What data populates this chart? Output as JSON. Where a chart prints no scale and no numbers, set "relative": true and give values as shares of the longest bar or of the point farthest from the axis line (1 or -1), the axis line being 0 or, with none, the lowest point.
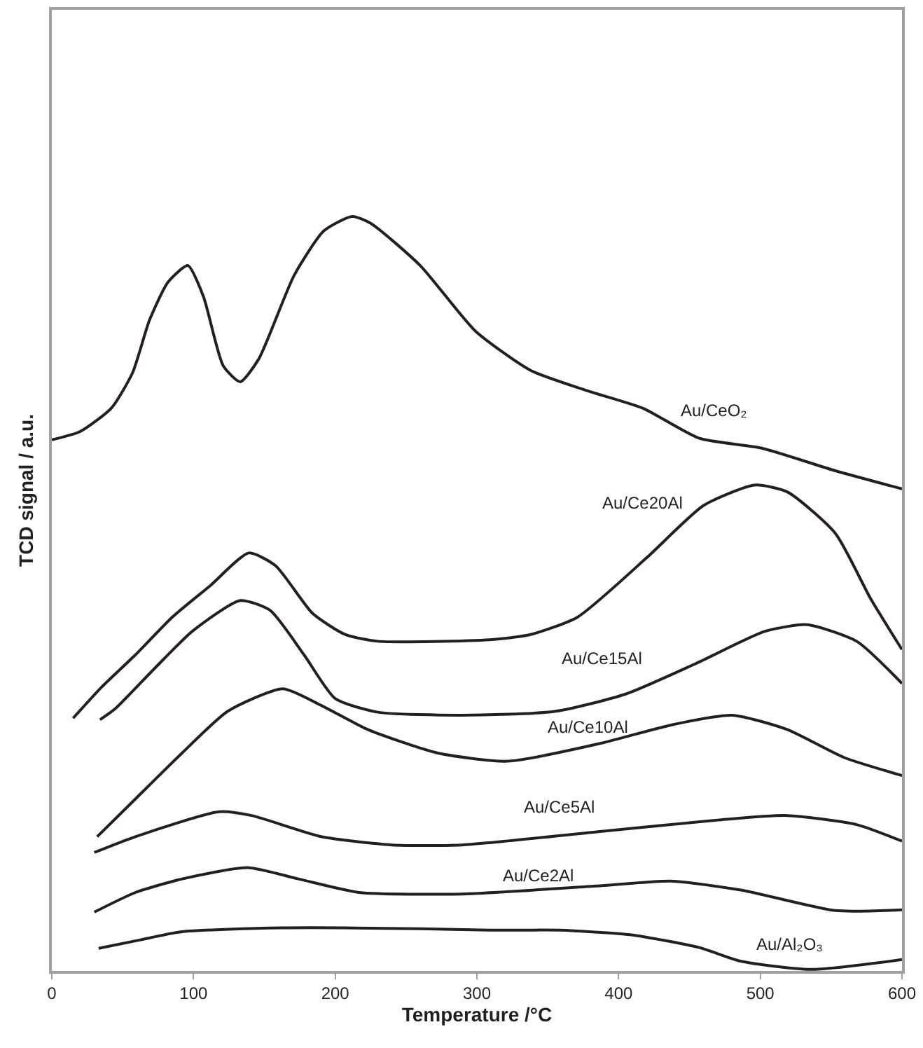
{
  "chart_data": {
    "type": "line",
    "relative": true,
    "xlabel": "Temperature /°C",
    "ylabel": "TCD signal / a.u.",
    "xlim": [
      0,
      600
    ],
    "xticks": [
      0,
      100,
      200,
      300,
      400,
      500,
      600
    ],
    "legend": false,
    "marker": "none",
    "line_style": "solid",
    "series": [
      {
        "name": "Au/CeO₂",
        "color": "#231f20",
        "x": [
          0,
          20,
          42,
          57,
          69,
          82,
          96,
          107,
          121,
          133,
          146,
          171,
          192,
          212,
          225,
          260,
          299,
          338,
          378,
          417,
          457,
          501,
          553,
          600
        ],
        "values": [
          0.704,
          0.715,
          0.746,
          0.793,
          0.863,
          0.913,
          0.935,
          0.894,
          0.802,
          0.781,
          0.811,
          0.922,
          0.981,
          1.0,
          0.991,
          0.935,
          0.848,
          0.796,
          0.769,
          0.746,
          0.706,
          0.693,
          0.663,
          0.639
        ]
      },
      {
        "name": "Au/Ce20Al",
        "color": "#231f20",
        "x": [
          15,
          35,
          59,
          85,
          112,
          139,
          158,
          184,
          207,
          230,
          309,
          338,
          371,
          420,
          460,
          496,
          519,
          553,
          578,
          600
        ],
        "values": [
          0.335,
          0.376,
          0.419,
          0.469,
          0.511,
          0.554,
          0.537,
          0.474,
          0.446,
          0.437,
          0.439,
          0.446,
          0.469,
          0.548,
          0.617,
          0.644,
          0.635,
          0.58,
          0.493,
          0.426
        ]
      },
      {
        "name": "Au/Ce15Al",
        "color": "#231f20",
        "x": [
          34,
          45,
          72,
          99,
          133,
          154,
          178,
          200,
          230,
          289,
          355,
          405,
          454,
          503,
          533,
          568,
          600
        ],
        "values": [
          0.333,
          0.348,
          0.4,
          0.45,
          0.491,
          0.478,
          0.419,
          0.361,
          0.343,
          0.339,
          0.344,
          0.367,
          0.407,
          0.45,
          0.459,
          0.437,
          0.381
        ]
      },
      {
        "name": "Au/Ce10Al",
        "color": "#231f20",
        "x": [
          32,
          59,
          92,
          124,
          163,
          190,
          223,
          272,
          322,
          388,
          437,
          480,
          519,
          559,
          600
        ],
        "values": [
          0.178,
          0.228,
          0.289,
          0.344,
          0.374,
          0.352,
          0.32,
          0.289,
          0.278,
          0.302,
          0.326,
          0.339,
          0.32,
          0.283,
          0.259
        ]
      },
      {
        "name": "Au/Ce5Al",
        "color": "#231f20",
        "x": [
          30,
          59,
          118,
          141,
          190,
          240,
          289,
          388,
          470,
          519,
          568,
          600
        ],
        "values": [
          0.157,
          0.178,
          0.211,
          0.206,
          0.178,
          0.167,
          0.167,
          0.185,
          0.2,
          0.206,
          0.194,
          0.172
        ]
      },
      {
        "name": "Au/Ce2Al",
        "color": "#231f20",
        "x": [
          30,
          59,
          92,
          138,
          174,
          217,
          289,
          388,
          437,
          487,
          553,
          600
        ],
        "values": [
          0.078,
          0.104,
          0.122,
          0.137,
          0.122,
          0.104,
          0.102,
          0.113,
          0.119,
          0.107,
          0.08,
          0.081
        ]
      },
      {
        "name": "Au/Al₂O₃",
        "color": "#231f20",
        "x": [
          33,
          62,
          92,
          161,
          260,
          309,
          358,
          408,
          457,
          486,
          535,
          600
        ],
        "values": [
          0.03,
          0.041,
          0.052,
          0.057,
          0.056,
          0.054,
          0.054,
          0.048,
          0.031,
          0.013,
          0.002,
          0.015
        ]
      }
    ]
  }
}
